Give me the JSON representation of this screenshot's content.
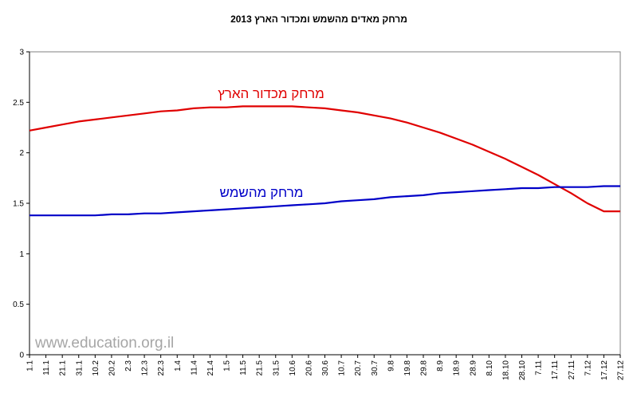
{
  "chart_data": {
    "type": "line",
    "title": "מרחק מאדים מהשמש ומכדור הארץ 2013",
    "xlabel": "",
    "ylabel": "",
    "ylim": [
      0,
      3
    ],
    "yticks": [
      "0",
      "0.5",
      "1",
      "1.5",
      "2",
      "2.5",
      "3"
    ],
    "grid": false,
    "categories": [
      "1.1",
      "11.1",
      "21.1",
      "31.1",
      "10.2",
      "20.2",
      "2.3",
      "12.3",
      "22.3",
      "1.4",
      "11.4",
      "21.4",
      "1.5",
      "11.5",
      "21.5",
      "31.5",
      "10.6",
      "20.6",
      "30.6",
      "10.7",
      "20.7",
      "30.7",
      "9.8",
      "19.8",
      "29.8",
      "8.9",
      "18.9",
      "28.9",
      "8.10",
      "18.10",
      "28.10",
      "7.11",
      "17.11",
      "27.11",
      "7.12",
      "17.12",
      "27.12"
    ],
    "series": [
      {
        "name": "מרחק מכדור הארץ",
        "color": "#e00000",
        "values": [
          2.22,
          2.25,
          2.28,
          2.31,
          2.33,
          2.35,
          2.37,
          2.39,
          2.41,
          2.42,
          2.44,
          2.45,
          2.45,
          2.46,
          2.46,
          2.46,
          2.46,
          2.45,
          2.44,
          2.42,
          2.4,
          2.37,
          2.34,
          2.3,
          2.25,
          2.2,
          2.14,
          2.08,
          2.01,
          1.94,
          1.86,
          1.78,
          1.69,
          1.6,
          1.5,
          1.42,
          1.42
        ]
      },
      {
        "name": "מרחק מהשמש",
        "color": "#0000c8",
        "values": [
          1.38,
          1.38,
          1.38,
          1.38,
          1.38,
          1.39,
          1.39,
          1.4,
          1.4,
          1.41,
          1.42,
          1.43,
          1.44,
          1.45,
          1.46,
          1.47,
          1.48,
          1.49,
          1.5,
          1.52,
          1.53,
          1.54,
          1.56,
          1.57,
          1.58,
          1.6,
          1.61,
          1.62,
          1.63,
          1.64,
          1.65,
          1.65,
          1.66,
          1.66,
          1.66,
          1.67,
          1.67
        ]
      }
    ],
    "annotations": {
      "watermark": "www.education.org.il"
    }
  }
}
